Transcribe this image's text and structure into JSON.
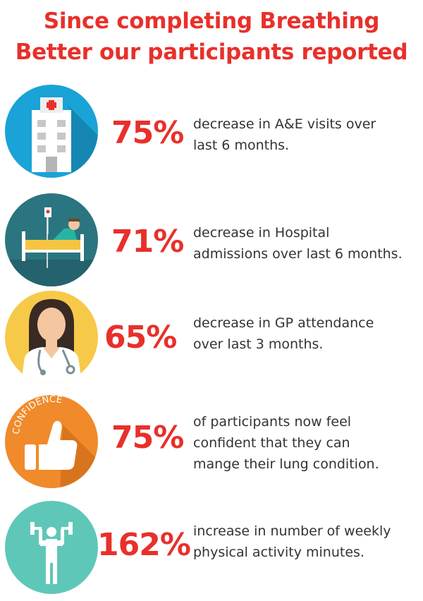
{
  "title": {
    "line1": "Since completing Breathing",
    "line2": "Better our participants reported"
  },
  "colors": {
    "accent_red": "#e8302b",
    "text": "#333333",
    "hospital_bg": "#1aa3d6",
    "bed_bg": "#2b7580",
    "doctor_bg": "#f7c948",
    "confidence_bg": "#f08a2a",
    "activity_bg": "#5fc7b8"
  },
  "stats": [
    {
      "icon": "hospital-building-icon",
      "percent": "75%",
      "lines": [
        "decrease in A&E visits over",
        "last 6 months."
      ]
    },
    {
      "icon": "hospital-bed-icon",
      "percent": "71%",
      "lines": [
        "decrease in Hospital",
        "admissions over last 6 months."
      ]
    },
    {
      "icon": "doctor-icon",
      "percent": "65%",
      "lines": [
        "decrease in GP attendance",
        "over last 3 months."
      ]
    },
    {
      "icon": "confidence-thumbs-up-icon",
      "percent": "75%",
      "icon_text": "CONFIDENCE",
      "lines": [
        "of participants now feel",
        "confident that they can",
        "mange their lung condition."
      ]
    },
    {
      "icon": "dumbbell-exercise-icon",
      "percent": "162%",
      "lines": [
        "increase in number of weekly",
        "physical activity minutes."
      ]
    }
  ]
}
